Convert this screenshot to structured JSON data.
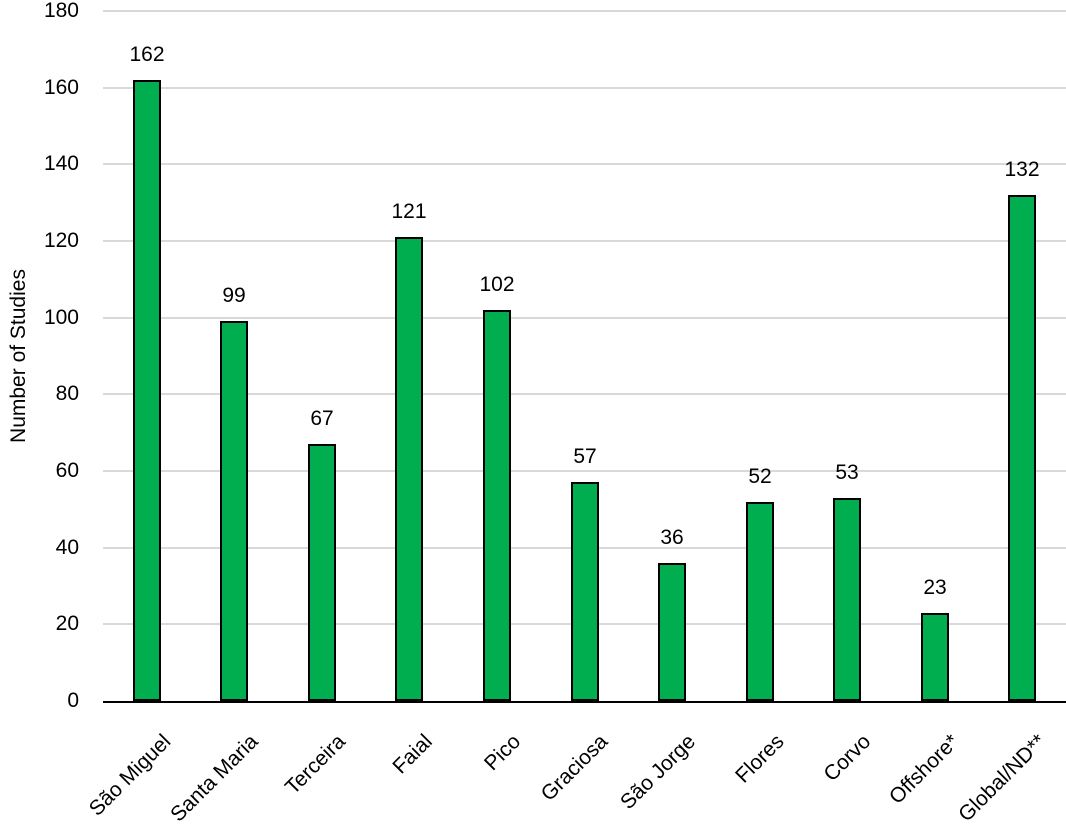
{
  "chart_data": {
    "type": "bar",
    "title": "",
    "xlabel": "",
    "ylabel": "Number of Studies",
    "categories": [
      "São Miguel",
      "Santa Maria",
      "Terceira",
      "Faial",
      "Pico",
      "Graciosa",
      "São Jorge",
      "Flores",
      "Corvo",
      "Offshore*",
      "Global/ND**"
    ],
    "values": [
      162,
      99,
      67,
      121,
      102,
      57,
      36,
      52,
      53,
      23,
      132
    ],
    "ylim": [
      0,
      180
    ],
    "yticks": [
      0,
      20,
      40,
      60,
      80,
      100,
      120,
      140,
      160,
      180
    ],
    "grid": true,
    "legend_position": "none",
    "show_value_labels": true,
    "x_label_rotation_deg": -45,
    "colors": {
      "bar_fill": "#00AE50",
      "bar_border": "#000000",
      "gridline": "#D9D9D9",
      "axis_line": "#000000",
      "text": "#000000",
      "background": "#FFFFFF"
    }
  }
}
